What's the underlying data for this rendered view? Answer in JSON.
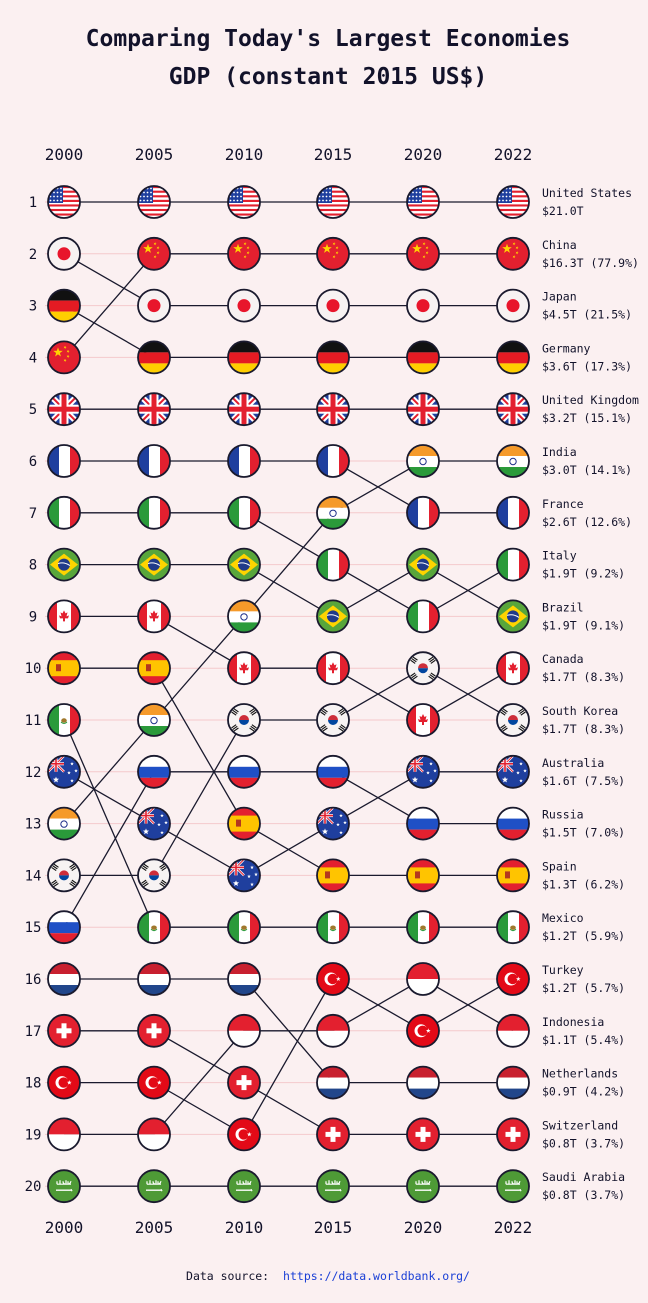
{
  "title_line1": "Comparing Today's Largest Economies",
  "title_line2": "GDP (constant 2015 US$)",
  "source": {
    "label": "Data source:",
    "url": "https://data.worldbank.org/"
  },
  "chart_data": {
    "type": "bump",
    "title": "Comparing Today's Largest Economies GDP (constant 2015 US$)",
    "years": [
      "2000",
      "2005",
      "2010",
      "2015",
      "2020",
      "2022"
    ],
    "ranks": [
      1,
      2,
      3,
      4,
      5,
      6,
      7,
      8,
      9,
      10,
      11,
      12,
      13,
      14,
      15,
      16,
      17,
      18,
      19,
      20
    ],
    "countries": [
      {
        "key": "us",
        "name": "United States",
        "value": "$21.0T",
        "share": "",
        "ranks": [
          1,
          1,
          1,
          1,
          1,
          1
        ]
      },
      {
        "key": "cn",
        "name": "China",
        "value": "$16.3T",
        "share": "(77.9%)",
        "ranks": [
          4,
          2,
          2,
          2,
          2,
          2
        ]
      },
      {
        "key": "jp",
        "name": "Japan",
        "value": "$4.5T",
        "share": "(21.5%)",
        "ranks": [
          2,
          3,
          3,
          3,
          3,
          3
        ]
      },
      {
        "key": "de",
        "name": "Germany",
        "value": "$3.6T",
        "share": "(17.3%)",
        "ranks": [
          3,
          4,
          4,
          4,
          4,
          4
        ]
      },
      {
        "key": "gb",
        "name": "United Kingdom",
        "value": "$3.2T",
        "share": "(15.1%)",
        "ranks": [
          5,
          5,
          5,
          5,
          5,
          5
        ]
      },
      {
        "key": "in",
        "name": "India",
        "value": "$3.0T",
        "share": "(14.1%)",
        "ranks": [
          13,
          11,
          9,
          7,
          6,
          6
        ]
      },
      {
        "key": "fr",
        "name": "France",
        "value": "$2.6T",
        "share": "(12.6%)",
        "ranks": [
          6,
          6,
          6,
          6,
          7,
          7
        ]
      },
      {
        "key": "it",
        "name": "Italy",
        "value": "$1.9T",
        "share": "(9.2%)",
        "ranks": [
          7,
          7,
          7,
          8,
          9,
          8
        ]
      },
      {
        "key": "br",
        "name": "Brazil",
        "value": "$1.9T",
        "share": "(9.1%)",
        "ranks": [
          8,
          8,
          8,
          9,
          8,
          9
        ]
      },
      {
        "key": "ca",
        "name": "Canada",
        "value": "$1.7T",
        "share": "(8.3%)",
        "ranks": [
          9,
          9,
          10,
          10,
          11,
          10
        ]
      },
      {
        "key": "kr",
        "name": "South Korea",
        "value": "$1.7T",
        "share": "(8.3%)",
        "ranks": [
          14,
          14,
          11,
          11,
          10,
          11
        ]
      },
      {
        "key": "au",
        "name": "Australia",
        "value": "$1.6T",
        "share": "(7.5%)",
        "ranks": [
          12,
          13,
          14,
          13,
          12,
          12
        ]
      },
      {
        "key": "ru",
        "name": "Russia",
        "value": "$1.5T",
        "share": "(7.0%)",
        "ranks": [
          15,
          12,
          12,
          12,
          13,
          13
        ]
      },
      {
        "key": "es",
        "name": "Spain",
        "value": "$1.3T",
        "share": "(6.2%)",
        "ranks": [
          10,
          10,
          13,
          14,
          14,
          14
        ]
      },
      {
        "key": "mx",
        "name": "Mexico",
        "value": "$1.2T",
        "share": "(5.9%)",
        "ranks": [
          11,
          15,
          15,
          15,
          15,
          15
        ]
      },
      {
        "key": "tr",
        "name": "Turkey",
        "value": "$1.2T",
        "share": "(5.7%)",
        "ranks": [
          18,
          18,
          19,
          16,
          17,
          16
        ]
      },
      {
        "key": "id",
        "name": "Indonesia",
        "value": "$1.1T",
        "share": "(5.4%)",
        "ranks": [
          19,
          19,
          17,
          17,
          16,
          17
        ]
      },
      {
        "key": "nl",
        "name": "Netherlands",
        "value": "$0.9T",
        "share": "(4.2%)",
        "ranks": [
          16,
          16,
          16,
          18,
          18,
          18
        ]
      },
      {
        "key": "ch",
        "name": "Switzerland",
        "value": "$0.8T",
        "share": "(3.7%)",
        "ranks": [
          17,
          17,
          18,
          19,
          19,
          19
        ]
      },
      {
        "key": "sa",
        "name": "Saudi Arabia",
        "value": "$0.8T",
        "share": "(3.7%)",
        "ranks": [
          20,
          20,
          20,
          20,
          20,
          20
        ]
      }
    ],
    "flag_colors": {
      "line": "#1a1a2e",
      "gridline": "#f4c9cc",
      "background": "#fbf0f1",
      "red": "#e3202f",
      "blue": "#1f3f9e",
      "yellow": "#ffd400",
      "green": "#2d9a3e",
      "saffron": "#f59a2a",
      "brazil_green": "#58a63b",
      "brazil_blue": "#1f3a8a",
      "saudi_green": "#4e9a36"
    }
  }
}
